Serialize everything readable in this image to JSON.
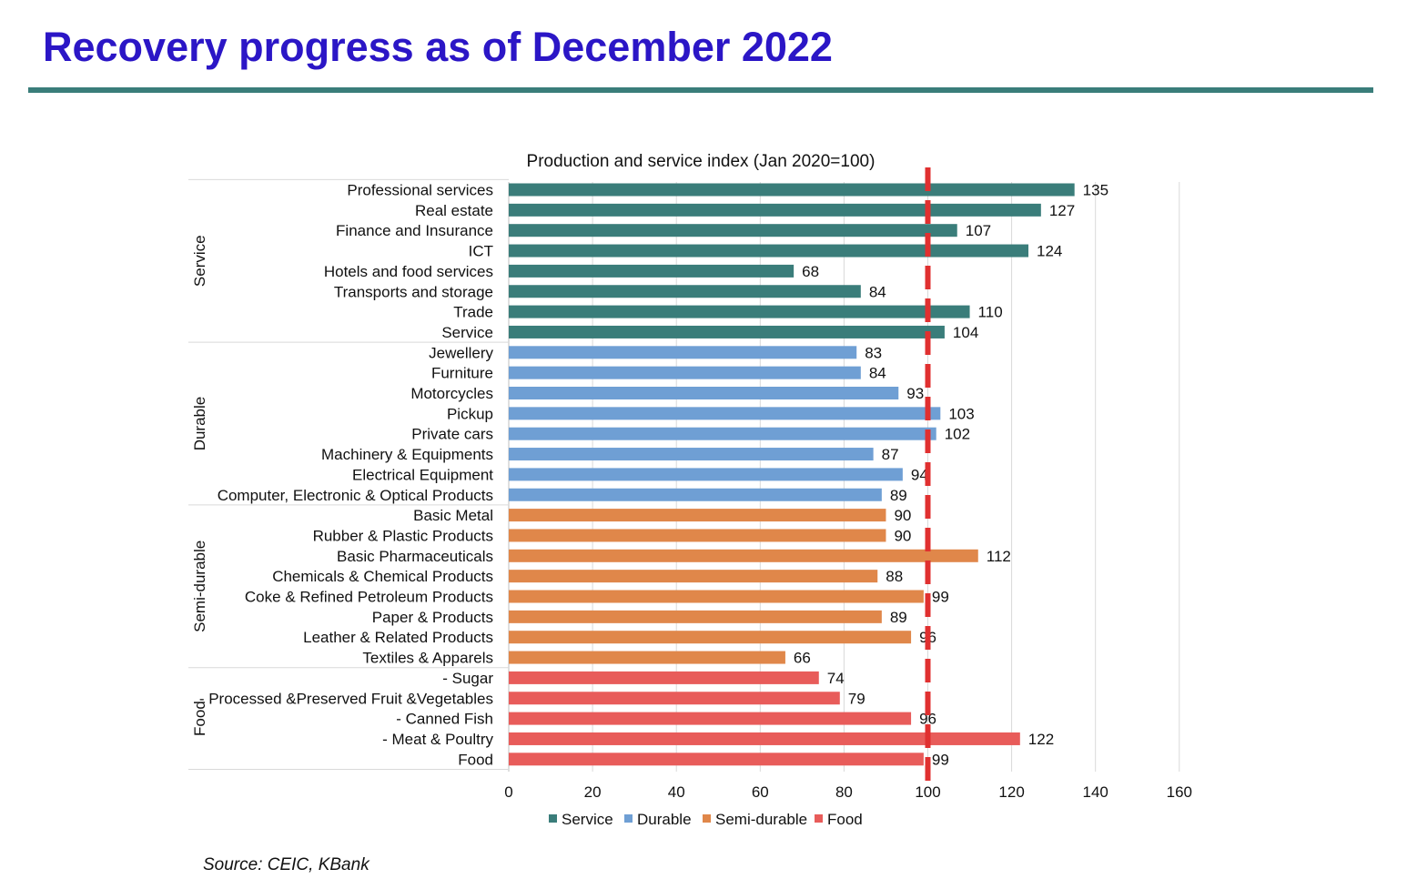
{
  "slide": {
    "title": "Recovery progress as of December 2022",
    "source": "Source: CEIC, KBank"
  },
  "chart_data": {
    "type": "bar",
    "orientation": "horizontal",
    "title": "Production and service index (Jan 2020=100)",
    "xlim": [
      0,
      160
    ],
    "x_ticks": [
      0,
      20,
      40,
      60,
      80,
      100,
      120,
      140,
      160
    ],
    "reference_line": {
      "value": 100,
      "color": "#e03030",
      "style": "dashed"
    },
    "grid": true,
    "legend_position": "bottom",
    "groups": [
      {
        "name": "Service",
        "color": "#3a7d7a",
        "items": [
          {
            "label": "Professional services",
            "value": 135
          },
          {
            "label": "Real estate",
            "value": 127
          },
          {
            "label": "Finance and Insurance",
            "value": 107
          },
          {
            "label": "ICT",
            "value": 124
          },
          {
            "label": "Hotels and food services",
            "value": 68
          },
          {
            "label": "Transports and storage",
            "value": 84
          },
          {
            "label": "Trade",
            "value": 110
          },
          {
            "label": "Service",
            "value": 104
          }
        ]
      },
      {
        "name": "Durable",
        "color": "#6f9fd4",
        "items": [
          {
            "label": "Jewellery",
            "value": 83
          },
          {
            "label": "Furniture",
            "value": 84
          },
          {
            "label": "Motorcycles",
            "value": 93
          },
          {
            "label": "Pickup",
            "value": 103
          },
          {
            "label": "Private cars",
            "value": 102
          },
          {
            "label": "Machinery & Equipments",
            "value": 87
          },
          {
            "label": "Electrical Equipment",
            "value": 94
          },
          {
            "label": "Computer, Electronic & Optical Products",
            "value": 89
          }
        ]
      },
      {
        "name": "Semi-durable",
        "color": "#e0874a",
        "items": [
          {
            "label": "Basic Metal",
            "value": 90
          },
          {
            "label": "Rubber & Plastic Products",
            "value": 90
          },
          {
            "label": "Basic Pharmaceuticals",
            "value": 112
          },
          {
            "label": "Chemicals & Chemical Products",
            "value": 88
          },
          {
            "label": "Coke & Refined Petroleum Products",
            "value": 99
          },
          {
            "label": "Paper & Products",
            "value": 89
          },
          {
            "label": "Leather & Related Products",
            "value": 96
          },
          {
            "label": "Textiles & Apparels",
            "value": 66
          }
        ]
      },
      {
        "name": "Food",
        "color": "#e85c5a",
        "items": [
          {
            "label": "- Sugar",
            "value": 74
          },
          {
            "label": "- Processed &Preserved Fruit &Vegetables",
            "value": 79
          },
          {
            "label": "- Canned Fish",
            "value": 96
          },
          {
            "label": "- Meat & Poultry",
            "value": 122
          },
          {
            "label": "Food",
            "value": 99
          }
        ]
      }
    ]
  }
}
